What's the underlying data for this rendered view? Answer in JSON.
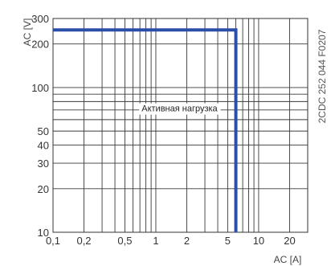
{
  "chart_data": {
    "type": "line",
    "ylabel": "AC [V]",
    "xlabel": "AC [A]",
    "x_scale": "log",
    "y_scale": "log",
    "xlim": [
      0.1,
      30
    ],
    "ylim": [
      10,
      300
    ],
    "x_ticks": [
      {
        "value": 0.1,
        "label": "0,1"
      },
      {
        "value": 0.2,
        "label": "0,2"
      },
      {
        "value": 0.5,
        "label": "0,5"
      },
      {
        "value": 1,
        "label": "1"
      },
      {
        "value": 2,
        "label": "2"
      },
      {
        "value": 5,
        "label": "5"
      },
      {
        "value": 10,
        "label": "10"
      },
      {
        "value": 20,
        "label": "20"
      }
    ],
    "y_ticks": [
      {
        "value": 10,
        "label": "10"
      },
      {
        "value": 20,
        "label": "20"
      },
      {
        "value": 30,
        "label": "30"
      },
      {
        "value": 40,
        "label": "40"
      },
      {
        "value": 50,
        "label": "50"
      },
      {
        "value": 100,
        "label": "100"
      },
      {
        "value": 200,
        "label": "200"
      },
      {
        "value": 300,
        "label": "300"
      }
    ],
    "x_grid": [
      0.1,
      0.2,
      0.3,
      0.4,
      0.5,
      0.6,
      0.7,
      0.8,
      0.9,
      1,
      2,
      3,
      4,
      5,
      6,
      7,
      8,
      9,
      10,
      20,
      30
    ],
    "y_grid": [
      10,
      20,
      30,
      40,
      50,
      60,
      70,
      80,
      90,
      100,
      200,
      300
    ],
    "grid": true,
    "series": [
      {
        "x": [
          0.1,
          6,
          6
        ],
        "y": [
          250,
          250,
          10
        ],
        "color": "#2a4fa8"
      }
    ],
    "annotation": {
      "text": "Активная нагрузка",
      "x": 1.7,
      "y": 72
    },
    "side_code": "2CDC 252 044 F0207"
  }
}
